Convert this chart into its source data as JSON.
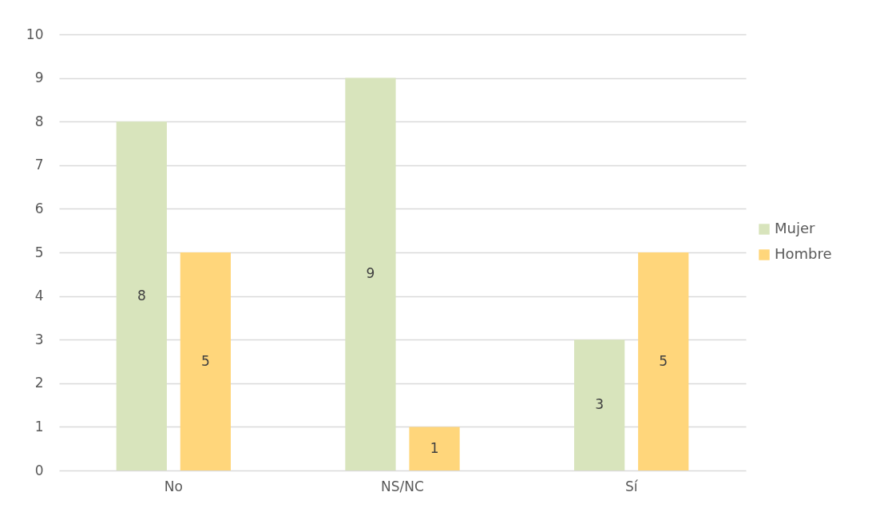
{
  "chart_data": {
    "type": "bar",
    "categories": [
      "No",
      "NS/NC",
      "Sí"
    ],
    "series": [
      {
        "name": "Mujer",
        "color": "#d8e4bc",
        "values": [
          8,
          9,
          3
        ]
      },
      {
        "name": "Hombre",
        "color": "#ffd67b",
        "values": [
          5,
          1,
          5
        ]
      }
    ],
    "ylim": [
      0,
      10
    ],
    "yticks": [
      0,
      1,
      2,
      3,
      4,
      5,
      6,
      7,
      8,
      9,
      10
    ],
    "grid": "y",
    "legend": "right",
    "data_labels": true
  }
}
